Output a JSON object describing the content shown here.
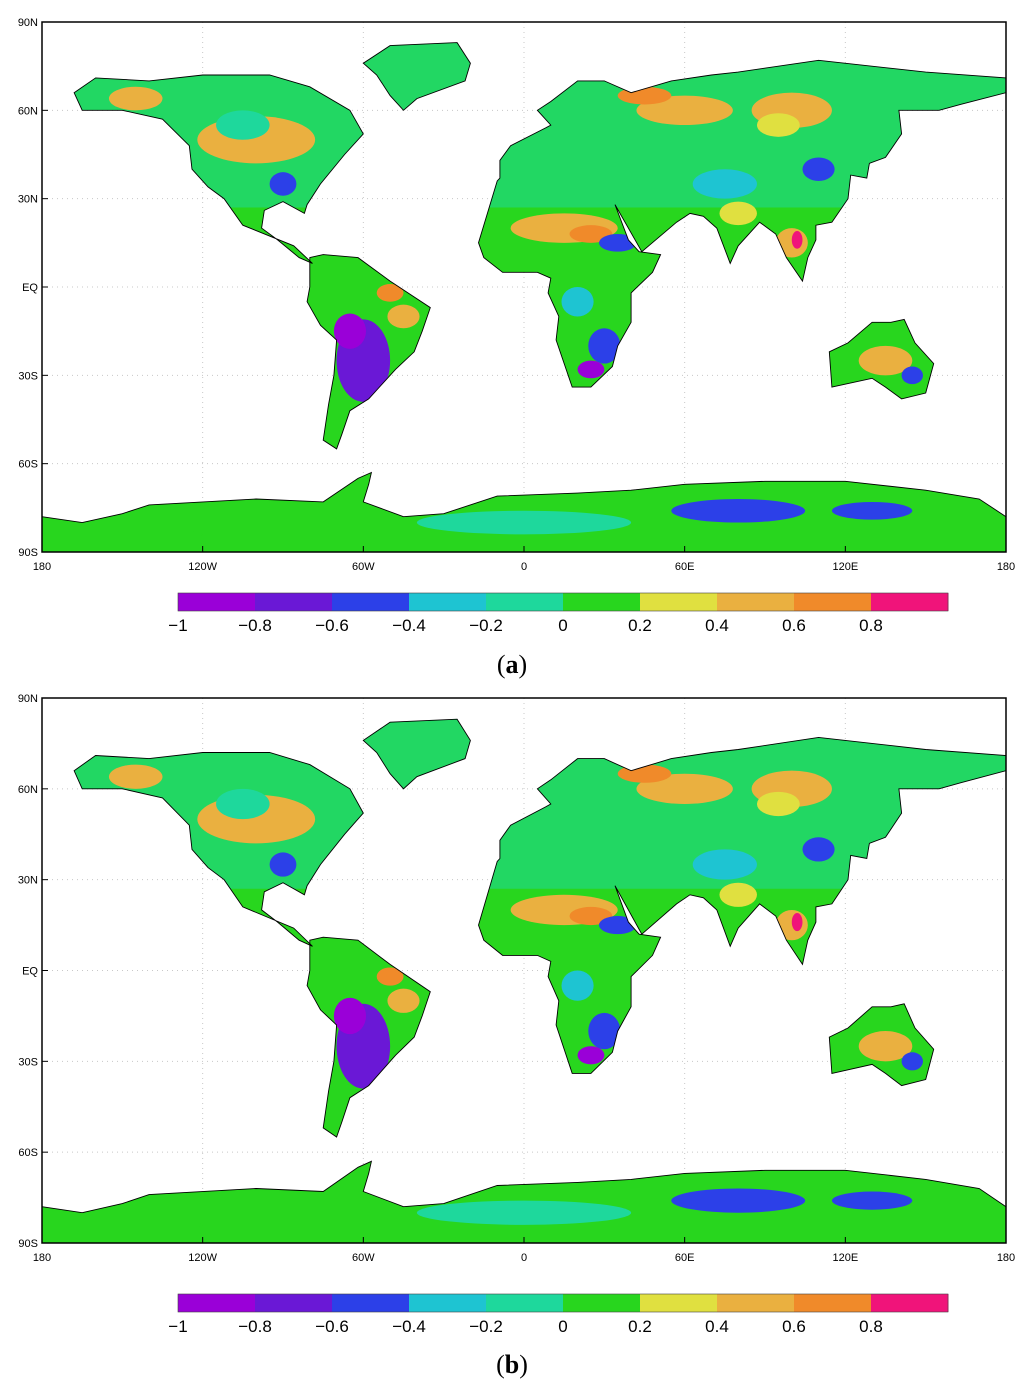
{
  "panels": [
    {
      "caption": "a",
      "lat_ticks": [
        "90N",
        "60N",
        "30N",
        "EQ",
        "30S",
        "60S",
        "90S"
      ],
      "lon_ticks": [
        "180",
        "120W",
        "60W",
        "0",
        "60E",
        "120E",
        "180"
      ],
      "colorbar": {
        "tick_labels": [
          "−1",
          "−0.8",
          "−0.6",
          "−0.4",
          "−0.2",
          "0",
          "0.2",
          "0.4",
          "0.6",
          "0.8"
        ],
        "colors": [
          "#9a00d8",
          "#6a18d6",
          "#2c40e8",
          "#1ec4d2",
          "#1ed89c",
          "#28d61e",
          "#e0e040",
          "#eab040",
          "#f08a2a",
          "#f0147a"
        ]
      }
    },
    {
      "caption": "b",
      "lat_ticks": [
        "90N",
        "60N",
        "30N",
        "EQ",
        "30S",
        "60S",
        "90S"
      ],
      "lon_ticks": [
        "180",
        "120W",
        "60W",
        "0",
        "60E",
        "120E",
        "180"
      ],
      "colorbar": {
        "tick_labels": [
          "−1",
          "−0.8",
          "−0.6",
          "−0.4",
          "−0.2",
          "0",
          "0.2",
          "0.4",
          "0.6",
          "0.8"
        ],
        "colors": [
          "#9a00d8",
          "#6a18d6",
          "#2c40e8",
          "#1ec4d2",
          "#1ed89c",
          "#28d61e",
          "#e0e040",
          "#eab040",
          "#f08a2a",
          "#f0147a"
        ]
      }
    }
  ]
}
